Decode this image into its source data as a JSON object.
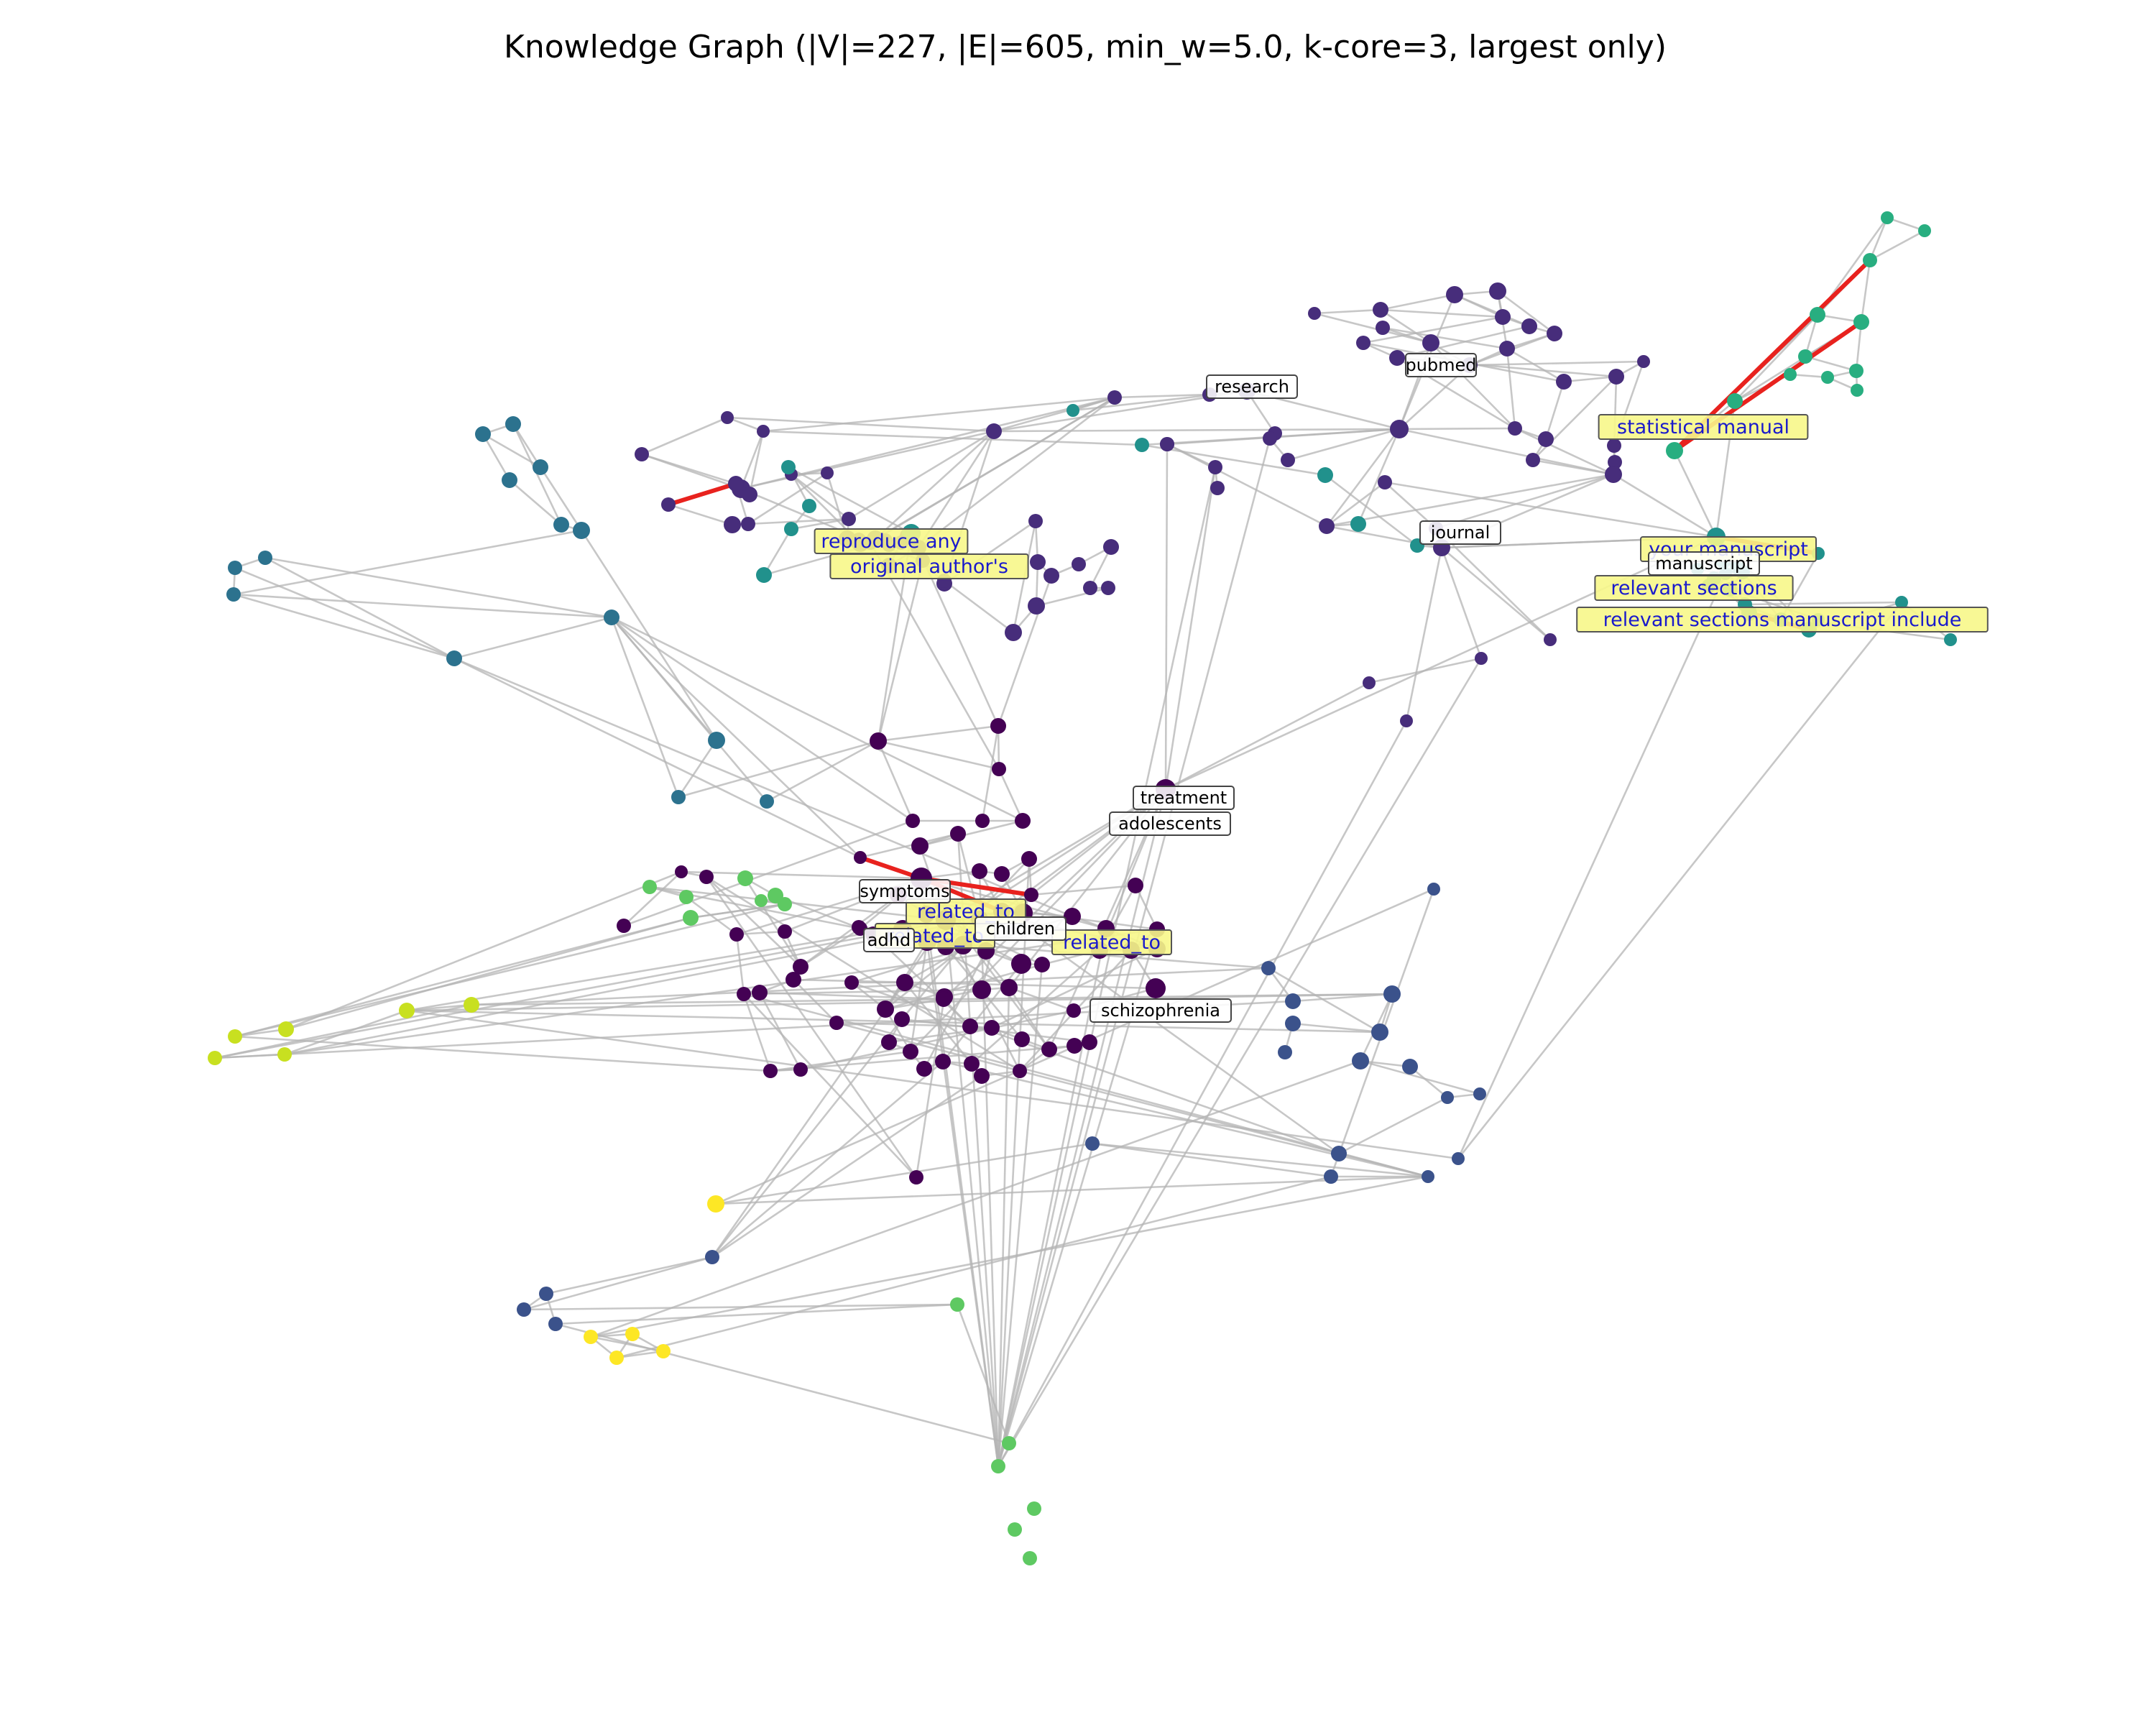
{
  "title": "Knowledge Graph (|V|=227, |E|=605, min_w=5.0, k-core=3, largest only)",
  "colors": {
    "background": "#ffffff",
    "edge_default": "#b4b4b4",
    "edge_highlight": "#e8221e",
    "node_label_box": "#ffffff",
    "edge_label_box": "#f7f78a",
    "edge_label_text": "#1a1acc",
    "clusters": {
      "c0": "#440154",
      "c1": "#472d7b",
      "c2": "#3b528b",
      "c3": "#2c728e",
      "c4": "#21918c",
      "c5": "#28ae80",
      "c6": "#5ec962",
      "c7": "#addc30",
      "c8": "#c8e020",
      "c9": "#fde725"
    }
  },
  "node_labels": [
    "research",
    "pubmed",
    "journal",
    "manuscript",
    "treatment",
    "adolescents",
    "symptoms",
    "adhd",
    "children",
    "schizophrenia"
  ],
  "edge_labels": [
    "statistical manual",
    "reproduce any",
    "original author's",
    "your manuscript",
    "relevant sections",
    "relevant sections manuscript include",
    "related_to",
    "related_to",
    "related_to"
  ]
}
